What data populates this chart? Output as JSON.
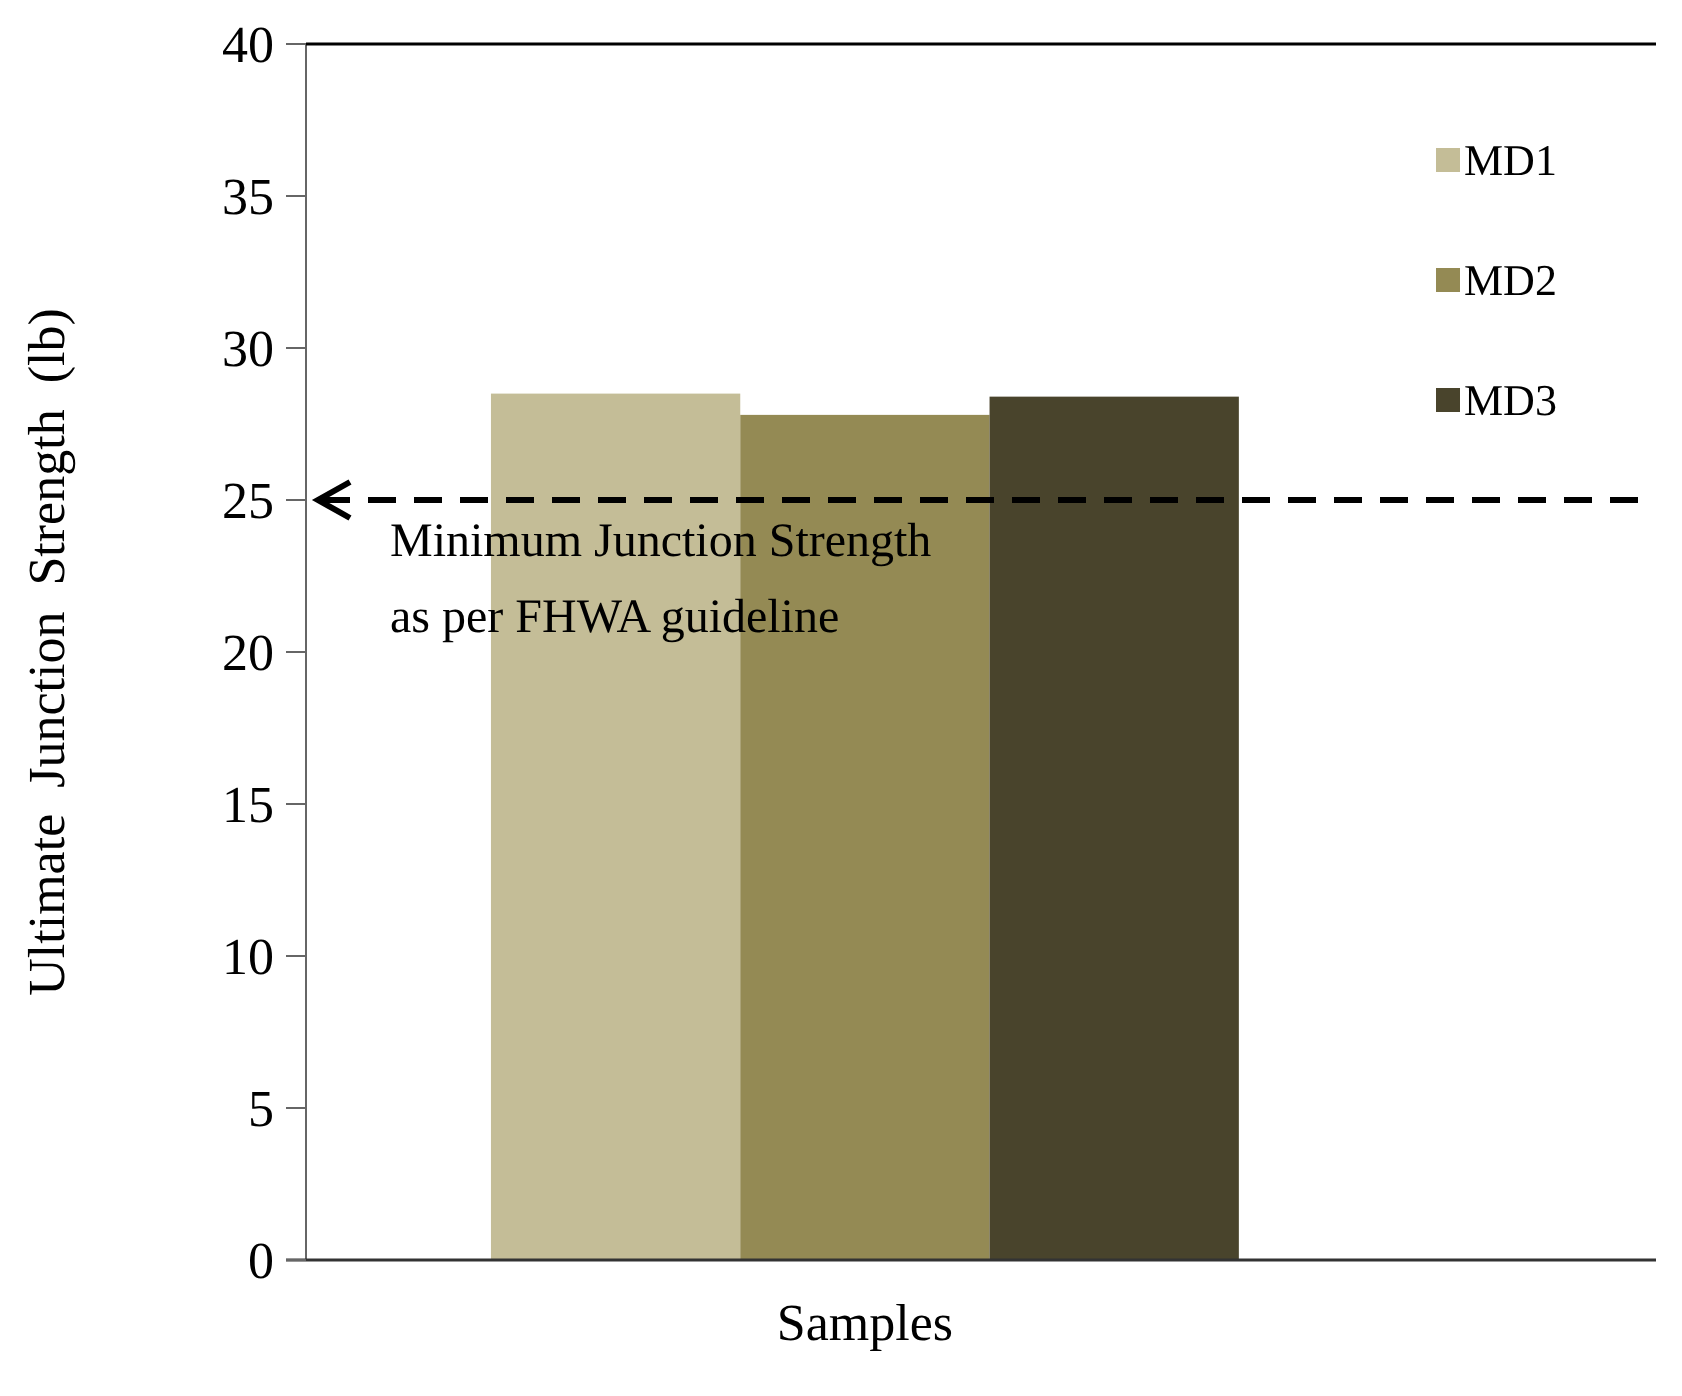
{
  "chart_data": {
    "type": "bar",
    "categories": [
      "Samples"
    ],
    "ylabel": "Ultimate  Junction  Strength  (lb)",
    "series": [
      {
        "name": "MD1",
        "color": "#c4bd97",
        "values": [
          28.5
        ]
      },
      {
        "name": "MD2",
        "color": "#948a54",
        "values": [
          27.8
        ]
      },
      {
        "name": "MD3",
        "color": "#49442c",
        "values": [
          28.4
        ]
      }
    ],
    "ylim": [
      0,
      40
    ],
    "yticks": [
      0,
      5,
      10,
      15,
      20,
      25,
      30,
      35,
      40
    ],
    "legend": "top right",
    "ref_lines": [
      {
        "axis": "y",
        "value": 25,
        "label": "Minimum Junction Strength\nas per FHWA guideline",
        "color": "#000000",
        "line_style": "dashed"
      }
    ]
  }
}
